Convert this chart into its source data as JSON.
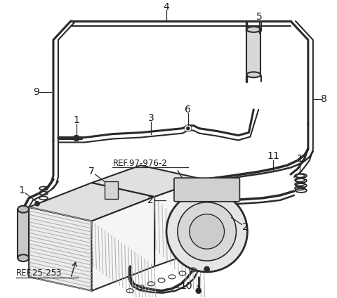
{
  "bg_color": "#ffffff",
  "line_color": "#2a2a2a",
  "text_color": "#1a1a1a",
  "figsize": [
    4.8,
    4.24
  ],
  "dpi": 100
}
